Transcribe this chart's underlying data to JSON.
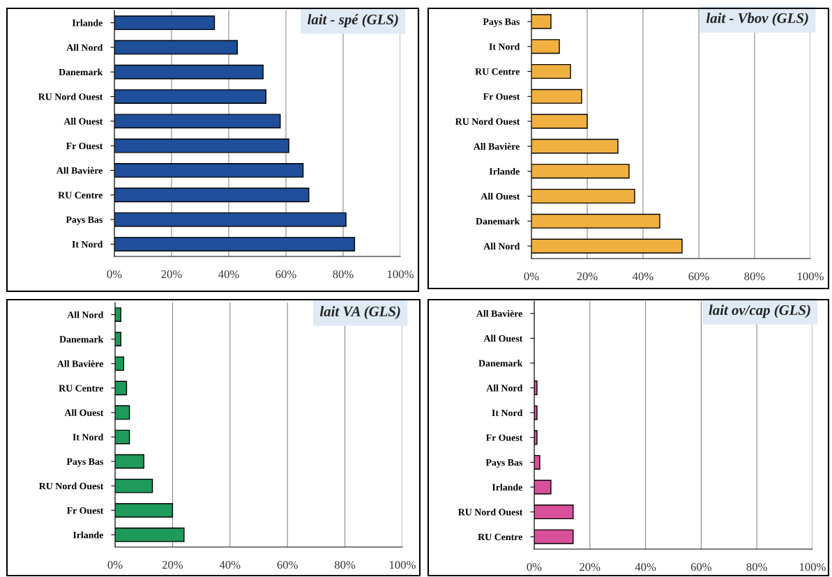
{
  "chart_data": [
    {
      "type": "bar",
      "orientation": "horizontal",
      "title": "lait - spé (GLS)",
      "categories": [
        "Irlande",
        "All Nord",
        "Danemark",
        "RU Nord Ouest",
        "All Ouest",
        "Fr Ouest",
        "All Bavière",
        "RU Centre",
        "Pays Bas",
        "It Nord"
      ],
      "values": [
        35,
        43,
        52,
        53,
        58,
        61,
        66,
        68,
        81,
        84
      ],
      "color": "#1f4e9a",
      "xlim": [
        0,
        100
      ],
      "xticks": [
        {
          "value": 0,
          "label": "0%"
        },
        {
          "value": 20,
          "label": "20%"
        },
        {
          "value": 40,
          "label": "40%"
        },
        {
          "value": 60,
          "label": "60%"
        },
        {
          "value": 80,
          "label": "80%"
        },
        {
          "value": 100,
          "label": "100%"
        }
      ],
      "grid": "x"
    },
    {
      "type": "bar",
      "orientation": "horizontal",
      "title": "lait - Vbov (GLS)",
      "categories": [
        "Pays Bas",
        "It Nord",
        "RU Centre",
        "Fr Ouest",
        "RU Nord Ouest",
        "All Bavière",
        "Irlande",
        "All Ouest",
        "Danemark",
        "All Nord"
      ],
      "values": [
        7,
        10,
        14,
        18,
        20,
        31,
        35,
        37,
        46,
        54
      ],
      "color": "#f0b040",
      "xlim": [
        0,
        100
      ],
      "xticks": [
        {
          "value": 0,
          "label": "0%"
        },
        {
          "value": 20,
          "label": "20%"
        },
        {
          "value": 40,
          "label": "40%"
        },
        {
          "value": 60,
          "label": "60%"
        },
        {
          "value": 80,
          "label": "80%"
        },
        {
          "value": 100,
          "label": "100%"
        }
      ],
      "grid": "x"
    },
    {
      "type": "bar",
      "orientation": "horizontal",
      "title": "lait VA (GLS)",
      "categories": [
        "All Nord",
        "Danemark",
        "All Bavière",
        "RU Centre",
        "All Ouest",
        "It Nord",
        "Pays Bas",
        "RU Nord Ouest",
        "Fr Ouest",
        "Irlande"
      ],
      "values": [
        2,
        2,
        3,
        4,
        5,
        5,
        10,
        13,
        20,
        24
      ],
      "color": "#1e9a5a",
      "xlim": [
        0,
        100
      ],
      "xticks": [
        {
          "value": 0,
          "label": "0%"
        },
        {
          "value": 20,
          "label": "20%"
        },
        {
          "value": 40,
          "label": "40%"
        },
        {
          "value": 60,
          "label": "60%"
        },
        {
          "value": 80,
          "label": "80%"
        },
        {
          "value": 100,
          "label": "100%"
        }
      ],
      "grid": "x"
    },
    {
      "type": "bar",
      "orientation": "horizontal",
      "title": "lait ov/cap (GLS)",
      "categories": [
        "All Bavière",
        "All Ouest",
        "Danemark",
        "All Nord",
        "It Nord",
        "Fr Ouest",
        "Pays Bas",
        "Irlande",
        "RU Nord Ouest",
        "RU Centre"
      ],
      "values": [
        0,
        0,
        0,
        1,
        1,
        1,
        2,
        6,
        14,
        14
      ],
      "color": "#d9509a",
      "xlim": [
        0,
        100
      ],
      "xticks": [
        {
          "value": 0,
          "label": "0%"
        },
        {
          "value": 20,
          "label": "20%"
        },
        {
          "value": 40,
          "label": "40%"
        },
        {
          "value": 60,
          "label": "60%"
        },
        {
          "value": 80,
          "label": "80%"
        },
        {
          "value": 100,
          "label": "100%"
        }
      ],
      "grid": "x"
    }
  ]
}
